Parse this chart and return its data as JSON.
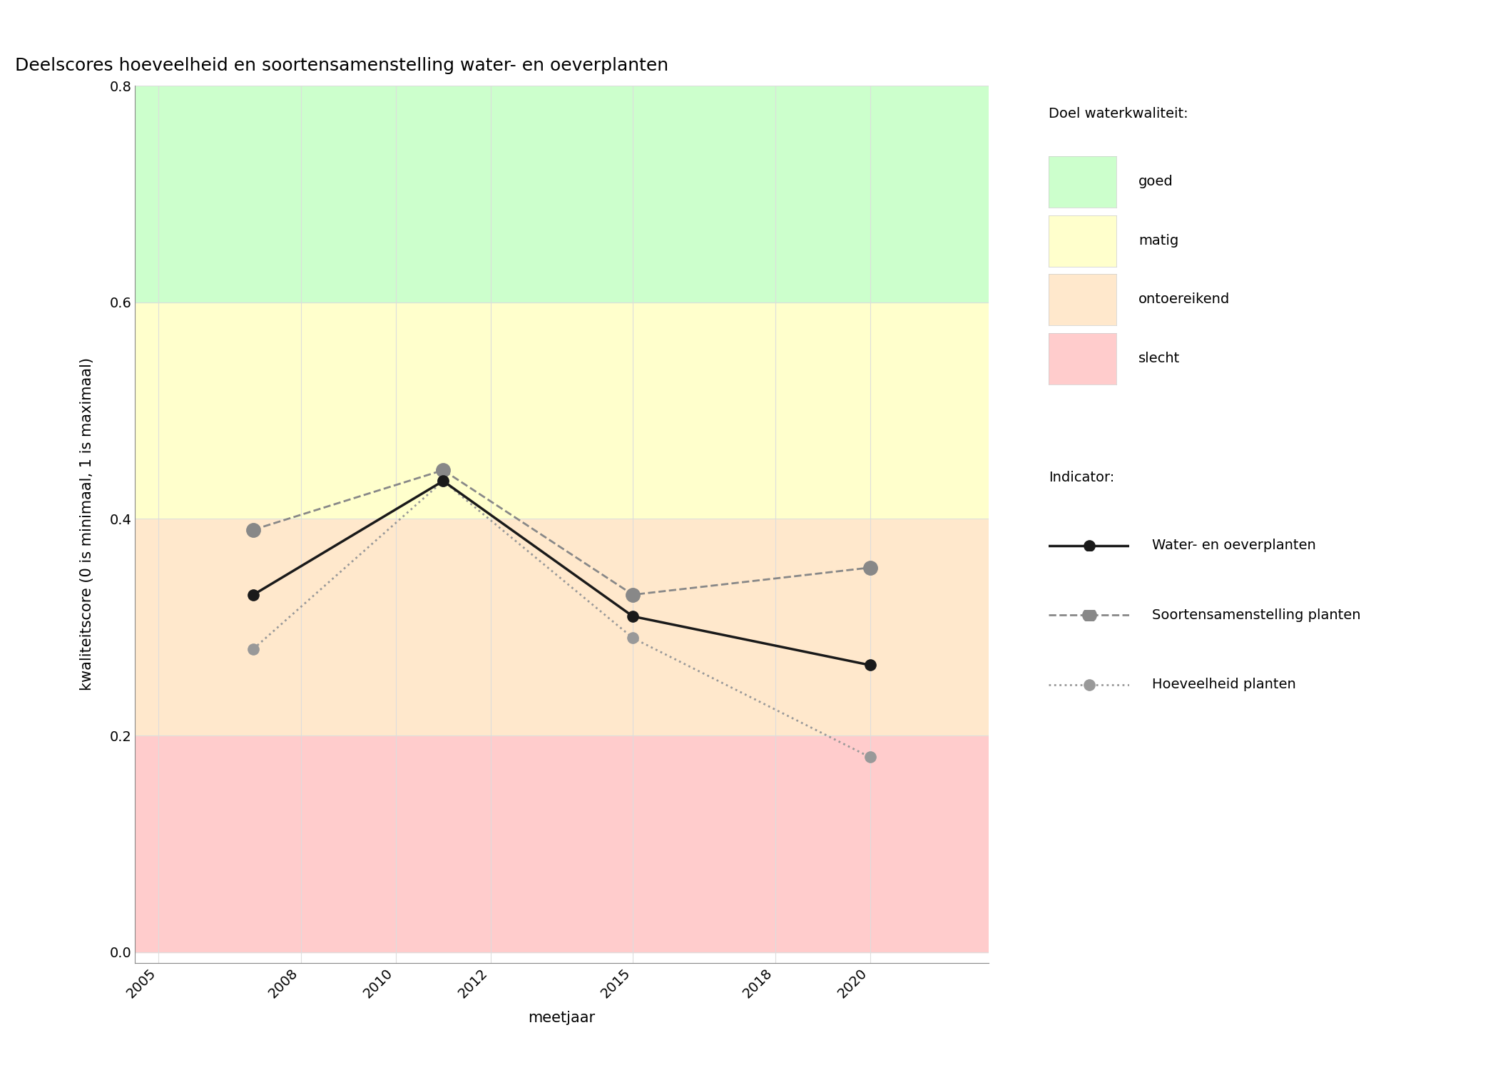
{
  "title": "Deelscores hoeveelheid en soortensamenstelling water- en oeverplanten",
  "xlabel": "meetjaar",
  "ylabel": "kwaliteitscore (0 is minimaal, 1 is maximaal)",
  "xlim": [
    2004.5,
    2022.5
  ],
  "ylim": [
    -0.01,
    0.8
  ],
  "yticks": [
    0.0,
    0.2,
    0.4,
    0.6,
    0.8
  ],
  "xticks": [
    2005,
    2008,
    2010,
    2012,
    2015,
    2018,
    2020
  ],
  "xticklabels": [
    "2005",
    "2008",
    "2010",
    "2012",
    "2015",
    "2018",
    "2020"
  ],
  "bg_bands": [
    {
      "ymin": 0.0,
      "ymax": 0.2,
      "color": "#FFCCCC",
      "label": "slecht"
    },
    {
      "ymin": 0.2,
      "ymax": 0.4,
      "color": "#FFE8CC",
      "label": "ontoereikend"
    },
    {
      "ymin": 0.4,
      "ymax": 0.6,
      "color": "#FFFFCC",
      "label": "matig"
    },
    {
      "ymin": 0.6,
      "ymax": 0.8,
      "color": "#CCFFCC",
      "label": "goed"
    }
  ],
  "series": [
    {
      "name": "Water- en oeverplanten",
      "years": [
        2007,
        2011,
        2015,
        2020
      ],
      "values": [
        0.33,
        0.435,
        0.31,
        0.265
      ],
      "color": "#1a1a1a",
      "linestyle": "solid",
      "linewidth": 2.5,
      "markersize": 11,
      "marker": "o",
      "zorder": 5
    },
    {
      "name": "Soortensamenstelling planten",
      "years": [
        2007,
        2011,
        2015,
        2020
      ],
      "values": [
        0.39,
        0.445,
        0.33,
        0.355
      ],
      "color": "#888888",
      "linestyle": "dashed",
      "linewidth": 2.0,
      "markersize": 14,
      "marker": "o",
      "zorder": 4
    },
    {
      "name": "Hoeveelheid planten",
      "years": [
        2007,
        2011,
        2015,
        2020
      ],
      "values": [
        0.28,
        0.435,
        0.29,
        0.18
      ],
      "color": "#999999",
      "linestyle": "dotted",
      "linewidth": 2.0,
      "markersize": 11,
      "marker": "o",
      "zorder": 3
    }
  ],
  "legend_doel_title": "Doel waterkwaliteit:",
  "legend_indicator_title": "Indicator:",
  "figure_bg": "#ffffff",
  "axes_bg": "#ffffff",
  "grid_color": "#dddddd",
  "grid_linewidth": 0.8,
  "title_fontsize": 18,
  "label_fontsize": 15,
  "tick_fontsize": 14,
  "legend_fontsize": 14
}
